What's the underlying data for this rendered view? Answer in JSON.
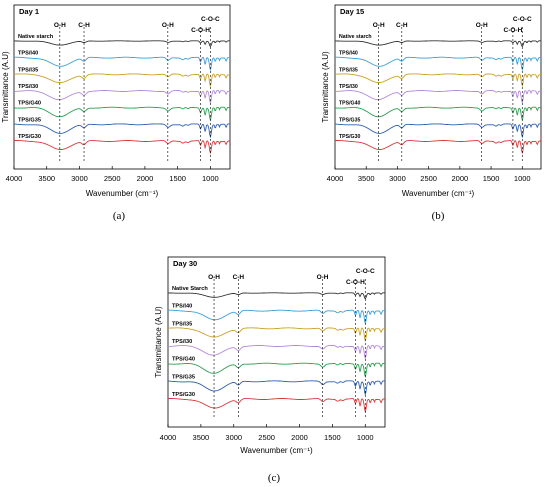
{
  "figure": {
    "captions": [
      "(a)",
      "(b)",
      "(c)"
    ]
  },
  "chart_data": [
    {
      "type": "line",
      "title": "Day 1",
      "xlabel": "Wavenumber (cm⁻¹)",
      "ylabel": "Transmittance (A.U)",
      "xlim": [
        4000,
        700
      ],
      "x_reversed": true,
      "xticks": [
        4000,
        3500,
        3000,
        2500,
        2000,
        1500,
        1000
      ],
      "grid": false,
      "series": [
        {
          "name": "Native starch",
          "color": "#333333"
        },
        {
          "name": "TPS/I40",
          "color": "#3aa0d8"
        },
        {
          "name": "TPS/I35",
          "color": "#c9a227"
        },
        {
          "name": "TPS/I30",
          "color": "#b48ad8"
        },
        {
          "name": "TPS/G40",
          "color": "#2e9e4f"
        },
        {
          "name": "TPS/G35",
          "color": "#2f5fb0"
        },
        {
          "name": "TPS/G30",
          "color": "#d9383a"
        }
      ],
      "annotations": [
        {
          "text": "O-H",
          "x": 3300
        },
        {
          "text": "C-H",
          "x": 2930
        },
        {
          "text": "O-H",
          "x": 1650
        },
        {
          "text": "C-O-H",
          "x": 1150
        },
        {
          "text": "C-O-C",
          "x": 1000
        }
      ]
    },
    {
      "type": "line",
      "title": "Day 15",
      "xlabel": "Wavenumber (cm⁻¹)",
      "ylabel": "Transmittance (A.U)",
      "xlim": [
        4000,
        700
      ],
      "x_reversed": true,
      "xticks": [
        4000,
        3500,
        3000,
        2500,
        2000,
        1500,
        1000
      ],
      "grid": false,
      "series": [
        {
          "name": "Native starch",
          "color": "#333333"
        },
        {
          "name": "TPS/I40",
          "color": "#3aa0d8"
        },
        {
          "name": "TPS/I35",
          "color": "#c9a227"
        },
        {
          "name": "TPS/I30",
          "color": "#b48ad8"
        },
        {
          "name": "TPS/G40",
          "color": "#2e9e4f"
        },
        {
          "name": "TPS/G35",
          "color": "#2f5fb0"
        },
        {
          "name": "TPS/G30",
          "color": "#d9383a"
        }
      ],
      "annotations": [
        {
          "text": "O-H",
          "x": 3300
        },
        {
          "text": "C-H",
          "x": 2930
        },
        {
          "text": "O-H",
          "x": 1650
        },
        {
          "text": "C-O-H",
          "x": 1150
        },
        {
          "text": "C-O-C",
          "x": 1000
        }
      ]
    },
    {
      "type": "line",
      "title": "Day 30",
      "xlabel": "Wavenumber (cm⁻¹)",
      "ylabel": "Transmittance (A.U)",
      "xlim": [
        4000,
        700
      ],
      "x_reversed": true,
      "xticks": [
        4000,
        3500,
        3000,
        2500,
        2000,
        1500,
        1000
      ],
      "grid": false,
      "series": [
        {
          "name": "Native Starch",
          "color": "#333333"
        },
        {
          "name": "TPS/I40",
          "color": "#3aa0d8"
        },
        {
          "name": "TPS/I35",
          "color": "#c9a227"
        },
        {
          "name": "TPS/I30",
          "color": "#b48ad8"
        },
        {
          "name": "TPS/G40",
          "color": "#2e9e4f"
        },
        {
          "name": "TPS/G35",
          "color": "#2f5fb0"
        },
        {
          "name": "TPS/G30",
          "color": "#d9383a"
        }
      ],
      "annotations": [
        {
          "text": "O-H",
          "x": 3300
        },
        {
          "text": "C-H",
          "x": 2930
        },
        {
          "text": "O-H",
          "x": 1650
        },
        {
          "text": "C-O-H",
          "x": 1150
        },
        {
          "text": "C-O-C",
          "x": 1000
        }
      ]
    }
  ]
}
